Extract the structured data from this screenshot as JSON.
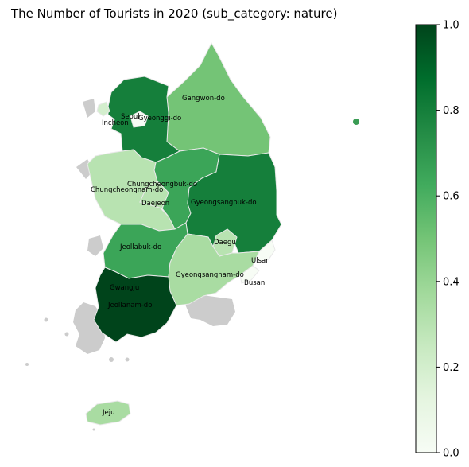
{
  "title": "The Number of Tourists in 2020 (sub_category: nature)",
  "colormap": {
    "name": "Greens",
    "min": 0.0,
    "max": 1.0,
    "ticks": [
      "0.0",
      "0.2",
      "0.4",
      "0.6",
      "0.8",
      "1.0"
    ],
    "stops": [
      "#f7fcf5",
      "#e5f5e0",
      "#c7e9c0",
      "#a1d99b",
      "#74c476",
      "#41ab5d",
      "#238b45",
      "#006d2c",
      "#00441b"
    ]
  },
  "regions": [
    {
      "name": "Gangwon-do",
      "value": 0.5
    },
    {
      "name": "Gyeonggi-do",
      "value": 0.8
    },
    {
      "name": "Seoul",
      "value": 0.0
    },
    {
      "name": "Incheon",
      "value": 0.2
    },
    {
      "name": "Chungcheongbuk-do",
      "value": 0.65
    },
    {
      "name": "Chungcheongnam-do",
      "value": 0.3
    },
    {
      "name": "Daejeon",
      "value": 0.3
    },
    {
      "name": "Gyeongsangbuk-do",
      "value": 0.8
    },
    {
      "name": "Daegu",
      "value": 0.3
    },
    {
      "name": "Jeollabuk-do",
      "value": 0.65
    },
    {
      "name": "Gwangju",
      "value": 0.6
    },
    {
      "name": "Jeollanam-do",
      "value": 1.0
    },
    {
      "name": "Gyeongsangnam-do",
      "value": 0.35
    },
    {
      "name": "Ulsan",
      "value": 0.0
    },
    {
      "name": "Busan",
      "value": 0.0
    },
    {
      "name": "Jeju",
      "value": 0.35
    }
  ]
}
